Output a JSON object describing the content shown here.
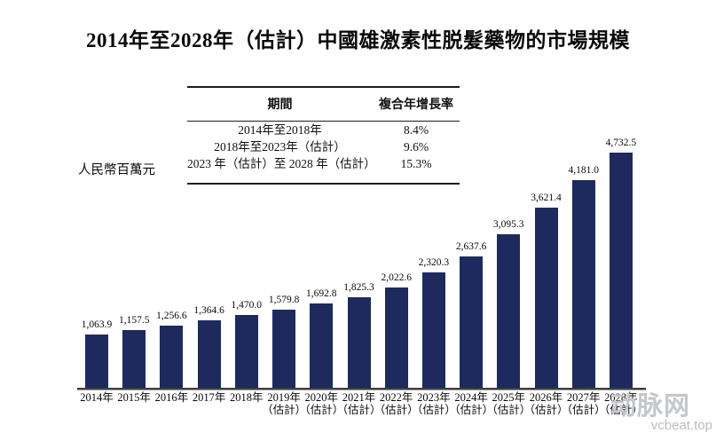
{
  "title": "2014年至2028年（估計）中國雄激素性脱髮藥物的市場規模",
  "y_axis_label": "人民幣百萬元",
  "cagr_table": {
    "headers": [
      "期間",
      "複合年增長率"
    ],
    "rows": [
      {
        "period": "2014年至2018年",
        "cagr": "8.4%"
      },
      {
        "period": "2018年至2023年（估計）",
        "cagr": "9.6%"
      },
      {
        "period": "2023 年（估計）至 2028 年（估計）",
        "cagr": "15.3%"
      }
    ]
  },
  "chart_data": {
    "type": "bar",
    "title": "2014年至2028年（估計）中國雄激素性脱髮藥物的市場規模",
    "ylabel": "人民幣百萬元",
    "categories": [
      "2014年",
      "2015年",
      "2016年",
      "2017年",
      "2018年",
      "2019年",
      "2020年",
      "2021年",
      "2022年",
      "2023年",
      "2024年",
      "2025年",
      "2026年",
      "2027年",
      "2028年"
    ],
    "category_notes": [
      "",
      "",
      "",
      "",
      "",
      "（估計）",
      "（估計）",
      "（估計）",
      "（估計）",
      "（估計）",
      "（估計）",
      "（估計）",
      "（估計）",
      "（估計）",
      "（估計）"
    ],
    "values": [
      1063.9,
      1157.5,
      1256.6,
      1364.6,
      1470.0,
      1579.8,
      1692.8,
      1825.3,
      2022.6,
      2320.3,
      2637.6,
      3095.3,
      3621.4,
      4181.0,
      4732.5
    ],
    "value_labels": [
      "1,063.9",
      "1,157.5",
      "1,256.6",
      "1,364.6",
      "1,470.0",
      "1,579.8",
      "1,692.8",
      "1,825.3",
      "2,022.6",
      "2,320.3",
      "2,637.6",
      "3,095.3",
      "3,621.4",
      "4,181.0",
      "4,732.5"
    ],
    "bar_color": "#1E2A5E",
    "ylim": [
      0,
      5000
    ],
    "grid": false,
    "legend": false,
    "y_axis_visible": false,
    "x_axis_line_color": "#3d3d3d"
  },
  "watermark": {
    "logo_text": "动脉网",
    "site_text": "vcbeat.top"
  }
}
